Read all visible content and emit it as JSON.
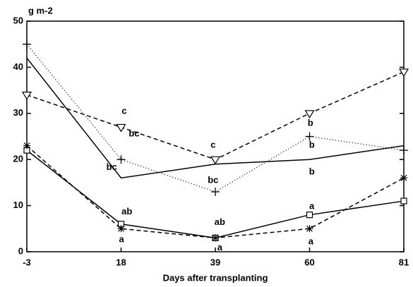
{
  "chart_data": {
    "type": "line",
    "ylabel": "g m-2",
    "xlabel": "Days after transplanting",
    "x": [
      -3,
      18,
      39,
      60,
      81
    ],
    "xlim": [
      -3,
      81
    ],
    "xticks": [
      -3,
      18,
      39,
      60,
      81
    ],
    "ylim": [
      0,
      50
    ],
    "yticks": [
      0,
      10,
      20,
      30,
      40,
      50
    ],
    "series": [
      {
        "color": "#000000",
        "dash": "solid",
        "marker": "none",
        "values": [
          42,
          16,
          19,
          20,
          23
        ]
      },
      {
        "color": "#000000",
        "dash": "dotted",
        "marker": "plus",
        "values": [
          45,
          20,
          13,
          25,
          22
        ]
      },
      {
        "color": "#000000",
        "dash": "dashed",
        "marker": "triangle",
        "values": [
          34,
          27,
          20,
          30,
          39
        ]
      },
      {
        "color": "#000000",
        "dash": "solid",
        "marker": "square",
        "values": [
          22,
          6,
          3,
          8,
          11
        ]
      },
      {
        "color": "#000000",
        "dash": "dashed",
        "marker": "asterisk",
        "values": [
          23,
          5,
          3,
          5,
          16
        ]
      }
    ],
    "annotations": [
      {
        "text": "c",
        "x": 18.7,
        "y": 30.4
      },
      {
        "text": "bc",
        "x": 20.9,
        "y": 25.5
      },
      {
        "text": "bc",
        "x": 15.9,
        "y": 18.3
      },
      {
        "text": "ab",
        "x": 19.3,
        "y": 8.6
      },
      {
        "text": "a",
        "x": 18.1,
        "y": 2.6
      },
      {
        "text": "c",
        "x": 38.5,
        "y": 23.1
      },
      {
        "text": "bc",
        "x": 38.5,
        "y": 15.4
      },
      {
        "text": "ab",
        "x": 40,
        "y": 6.3
      },
      {
        "text": "a",
        "x": 40,
        "y": 0.8
      },
      {
        "text": "b",
        "x": 60.2,
        "y": 27.8
      },
      {
        "text": "b",
        "x": 60.5,
        "y": 23.1
      },
      {
        "text": "b",
        "x": 60.5,
        "y": 17.3
      },
      {
        "text": "a",
        "x": 60.5,
        "y": 9.8
      },
      {
        "text": "a",
        "x": 60.3,
        "y": 2.1
      }
    ]
  }
}
